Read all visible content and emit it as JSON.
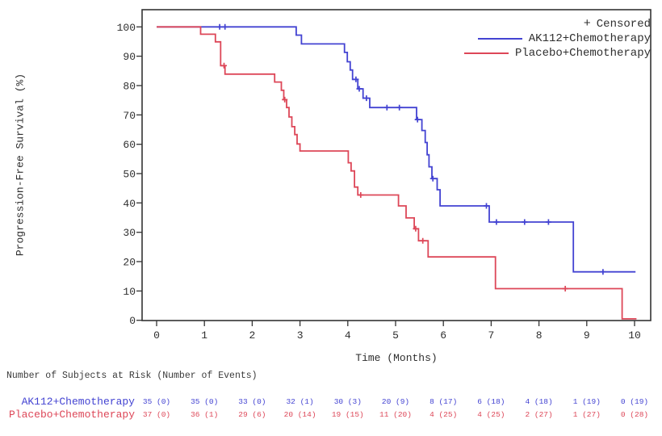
{
  "chart_data": {
    "type": "line",
    "subtype": "kaplan-meier-step",
    "x_label": "Time (Months)",
    "y_label": "Progression-Free Survival (%)",
    "x_ticks": [
      0,
      1,
      2,
      3,
      4,
      5,
      6,
      7,
      8,
      9,
      10
    ],
    "y_ticks": [
      0,
      10,
      20,
      30,
      40,
      50,
      60,
      70,
      80,
      90,
      100
    ],
    "x_range": [
      0,
      10
    ],
    "y_range": [
      0,
      100
    ],
    "grid": false,
    "legend_position": "inside-top-right",
    "censored_symbol": "+",
    "censored_label": "Censored",
    "axis_color": "#333333",
    "series": [
      {
        "name": "AK112+Chemotherapy",
        "color": "#4343d2",
        "steps": [
          [
            0,
            100
          ],
          [
            2.92,
            97.2
          ],
          [
            3.03,
            94.2
          ],
          [
            3.93,
            91.3
          ],
          [
            3.99,
            88.1
          ],
          [
            4.05,
            85.3
          ],
          [
            4.1,
            82.1
          ],
          [
            4.21,
            78.9
          ],
          [
            4.32,
            75.7
          ],
          [
            4.46,
            72.5
          ],
          [
            5.44,
            68.4
          ],
          [
            5.55,
            64.7
          ],
          [
            5.62,
            60.6
          ],
          [
            5.66,
            56.4
          ],
          [
            5.7,
            52.3
          ],
          [
            5.76,
            48.3
          ],
          [
            5.87,
            44.5
          ],
          [
            5.93,
            39.0
          ],
          [
            6.96,
            33.5
          ],
          [
            8.72,
            16.5
          ]
        ],
        "end_time": 10.02,
        "censors": [
          [
            1.32,
            100
          ],
          [
            1.43,
            100
          ],
          [
            4.17,
            82.1
          ],
          [
            4.24,
            78.9
          ],
          [
            4.39,
            75.7
          ],
          [
            4.82,
            72.5
          ],
          [
            5.08,
            72.5
          ],
          [
            5.46,
            68.4
          ],
          [
            5.78,
            48.3
          ],
          [
            6.9,
            39.0
          ],
          [
            7.11,
            33.5
          ],
          [
            7.7,
            33.5
          ],
          [
            8.2,
            33.5
          ],
          [
            9.34,
            16.5
          ]
        ]
      },
      {
        "name": "Placebo+Chemotherapy",
        "color": "#dd4758",
        "steps": [
          [
            0,
            100
          ],
          [
            0.92,
            97.5
          ],
          [
            1.23,
            94.9
          ],
          [
            1.34,
            86.8
          ],
          [
            1.43,
            83.9
          ],
          [
            2.47,
            81.2
          ],
          [
            2.61,
            78.4
          ],
          [
            2.66,
            75.2
          ],
          [
            2.72,
            72.5
          ],
          [
            2.77,
            69.3
          ],
          [
            2.83,
            66.0
          ],
          [
            2.89,
            63.3
          ],
          [
            2.94,
            60.1
          ],
          [
            3.0,
            57.7
          ],
          [
            4.01,
            53.7
          ],
          [
            4.07,
            50.9
          ],
          [
            4.14,
            45.4
          ],
          [
            4.21,
            42.7
          ],
          [
            5.06,
            39.0
          ],
          [
            5.22,
            34.9
          ],
          [
            5.39,
            31.2
          ],
          [
            5.48,
            27.1
          ],
          [
            5.68,
            21.6
          ],
          [
            7.09,
            10.8
          ],
          [
            9.74,
            0.5
          ]
        ],
        "end_time": 10.04,
        "censors": [
          [
            1.41,
            86.8
          ],
          [
            2.68,
            75.2
          ],
          [
            4.27,
            42.7
          ],
          [
            5.42,
            31.2
          ],
          [
            5.57,
            27.1
          ],
          [
            8.55,
            10.8
          ]
        ]
      }
    ],
    "risk_table": {
      "title": "Number of Subjects at Risk (Number of Events)",
      "time_points": [
        0,
        1,
        2,
        3,
        4,
        5,
        6,
        7,
        8,
        9,
        10
      ],
      "rows": [
        {
          "name": "AK112+Chemotherapy",
          "color": "#4343d2",
          "values": [
            "35 (0)",
            "35 (0)",
            "33 (0)",
            "32 (1)",
            "30 (3)",
            "20 (9)",
            "8 (17)",
            "6 (18)",
            "4 (18)",
            "1 (19)",
            "0 (19)"
          ]
        },
        {
          "name": "Placebo+Chemotherapy",
          "color": "#dd4758",
          "values": [
            "37 (0)",
            "36 (1)",
            "29 (6)",
            "20 (14)",
            "19 (15)",
            "11 (20)",
            "4 (25)",
            "4 (25)",
            "2 (27)",
            "1 (27)",
            "0 (28)"
          ]
        }
      ]
    }
  }
}
